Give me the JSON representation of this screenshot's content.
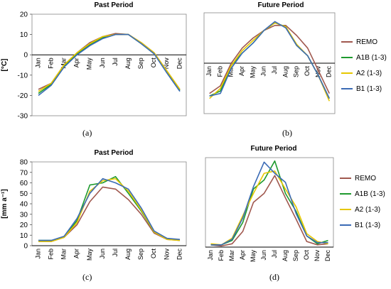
{
  "colors": {
    "REMO": "#a0584e",
    "A1B": "#1e9a2e",
    "A2": "#e6c700",
    "B1": "#3b6bb5",
    "extra_blue": "#4a90c8",
    "extra_green": "#5aa83a"
  },
  "panels": {
    "a": {
      "label": "(a)"
    },
    "b": {
      "label": "(b)"
    },
    "c": {
      "label": "(c)"
    },
    "d": {
      "label": "(d)"
    }
  },
  "legend_top": {
    "items": [
      {
        "name": "REMO",
        "color": "#a0584e"
      },
      {
        "name": "A1B (1-3)",
        "color": "#1e9a2e"
      },
      {
        "name": "A2 (1-3)",
        "color": "#e6c700"
      },
      {
        "name": "B1 (1-3)",
        "color": "#3b6bb5"
      }
    ]
  },
  "legend_bottom": {
    "items": [
      {
        "name": "REMO",
        "color": "#a0584e"
      },
      {
        "name": "A1B (1-3)",
        "color": "#1e9a2e"
      },
      {
        "name": "A2 (1-3)",
        "color": "#e6c700"
      },
      {
        "name": "B1 (1-3)",
        "color": "#3b6bb5"
      }
    ]
  },
  "chart_data": [
    {
      "id": "a",
      "type": "line",
      "title": "Past Period",
      "ylabel": "[°C]",
      "xlabel": "",
      "ylim": [
        -30,
        20
      ],
      "yticks": [
        -30,
        -20,
        -10,
        0,
        10,
        20
      ],
      "categories": [
        "Jan",
        "Feb",
        "Mar",
        "Apr",
        "May",
        "Jun",
        "Jul",
        "Aug",
        "Sep",
        "Oct",
        "Nov",
        "Dec"
      ],
      "series": [
        {
          "name": "REMO",
          "color": "#a0584e",
          "values": [
            -17,
            -14,
            -5,
            1,
            6,
            9,
            10.5,
            10,
            6,
            1,
            -8,
            -17
          ]
        },
        {
          "name": "A1B (1-3)",
          "color": "#1e9a2e",
          "values": [
            -19,
            -14.5,
            -5.5,
            0.5,
            5,
            8.5,
            10,
            10,
            5.5,
            0.5,
            -8.5,
            -17.5
          ]
        },
        {
          "name": "A2 (1-3)",
          "color": "#e6c700",
          "values": [
            -18,
            -14,
            -5,
            1,
            5.5,
            9,
            10,
            10,
            6,
            1,
            -8,
            -17
          ]
        },
        {
          "name": "B1 (1-3)",
          "color": "#3b6bb5",
          "values": [
            -20,
            -15,
            -6,
            0,
            4.5,
            8,
            10,
            10,
            5.5,
            0.5,
            -9,
            -18
          ]
        }
      ]
    },
    {
      "id": "b",
      "type": "line",
      "title": "Future Period",
      "ylabel": "",
      "xlabel": "",
      "ylim": [
        -25,
        15
      ],
      "yticks": [],
      "categories": [
        "Jan",
        "Feb",
        "Mar",
        "Apr",
        "May",
        "Jun",
        "Jul",
        "Aug",
        "Sep",
        "Oct",
        "Nov",
        "Dec"
      ],
      "series": [
        {
          "name": "REMO",
          "color": "#a0584e",
          "values": [
            -17,
            -14,
            -5,
            1,
            5,
            8,
            10,
            10,
            6,
            1,
            -8,
            -17
          ]
        },
        {
          "name": "A1B (1-3)",
          "color": "#1e9a2e",
          "values": [
            -18,
            -16,
            -6,
            -1,
            3,
            8,
            11,
            9.5,
            2,
            -2,
            -10,
            -19
          ]
        },
        {
          "name": "A2 (1-3)",
          "color": "#e6c700",
          "values": [
            -19,
            -15,
            -6,
            0,
            4,
            8,
            11,
            9.5,
            2.5,
            -2,
            -10,
            -20
          ]
        },
        {
          "name": "B1 (1-3)",
          "color": "#3b6bb5",
          "values": [
            -18,
            -17,
            -7,
            -1,
            3,
            8,
            11.5,
            9,
            2,
            -2,
            -10,
            -19
          ]
        }
      ]
    },
    {
      "id": "c",
      "type": "line",
      "title": "Past Period",
      "ylabel": "[mm a⁻¹]",
      "xlabel": "",
      "ylim": [
        0,
        80
      ],
      "yticks": [
        0,
        10,
        20,
        30,
        40,
        50,
        60,
        70,
        80
      ],
      "categories": [
        "Jan",
        "Feb",
        "Mar",
        "Apr",
        "May",
        "Jun",
        "Jul",
        "Aug",
        "Sep",
        "Oct",
        "Nov",
        "Dec"
      ],
      "series": [
        {
          "name": "REMO",
          "color": "#a0584e",
          "values": [
            4,
            4,
            8,
            20,
            42,
            56,
            54,
            44,
            30,
            12,
            6,
            5
          ]
        },
        {
          "name": "A1B (1-3)",
          "color": "#1e9a2e",
          "values": [
            5,
            5,
            8,
            24,
            58,
            60,
            66,
            50,
            33,
            13,
            7,
            5
          ]
        },
        {
          "name": "A2 (1-3)",
          "color": "#e6c700",
          "values": [
            4,
            4,
            8,
            22,
            52,
            62,
            64,
            52,
            34,
            13,
            6,
            5
          ]
        },
        {
          "name": "B1 (1-3)",
          "color": "#3b6bb5",
          "values": [
            5,
            5,
            9,
            26,
            50,
            64,
            60,
            54,
            36,
            14,
            7,
            6
          ]
        }
      ]
    },
    {
      "id": "d",
      "type": "line",
      "title": "Future Period",
      "ylabel": "",
      "xlabel": "",
      "ylim": [
        0,
        80
      ],
      "yticks": [],
      "categories": [
        "Jan",
        "Feb",
        "Mar",
        "Apr",
        "May",
        "Jun",
        "Jul",
        "Aug",
        "Sep",
        "Oct",
        "Nov",
        "Dec"
      ],
      "series": [
        {
          "name": "REMO",
          "color": "#a0584e",
          "values": [
            2,
            1,
            3,
            14,
            40,
            48,
            64,
            44,
            25,
            5,
            2,
            3
          ]
        },
        {
          "name": "A1B (1-3)",
          "color": "#1e9a2e",
          "values": [
            2,
            2,
            6,
            22,
            52,
            60,
            77,
            48,
            32,
            10,
            3,
            6
          ]
        },
        {
          "name": "A2 (1-3)",
          "color": "#e6c700",
          "values": [
            3,
            2,
            8,
            28,
            48,
            66,
            68,
            52,
            36,
            12,
            5,
            3
          ]
        },
        {
          "name": "B1 (1-3)",
          "color": "#3b6bb5",
          "values": [
            2,
            2,
            7,
            26,
            54,
            76,
            66,
            58,
            30,
            10,
            4,
            4
          ]
        }
      ]
    }
  ]
}
